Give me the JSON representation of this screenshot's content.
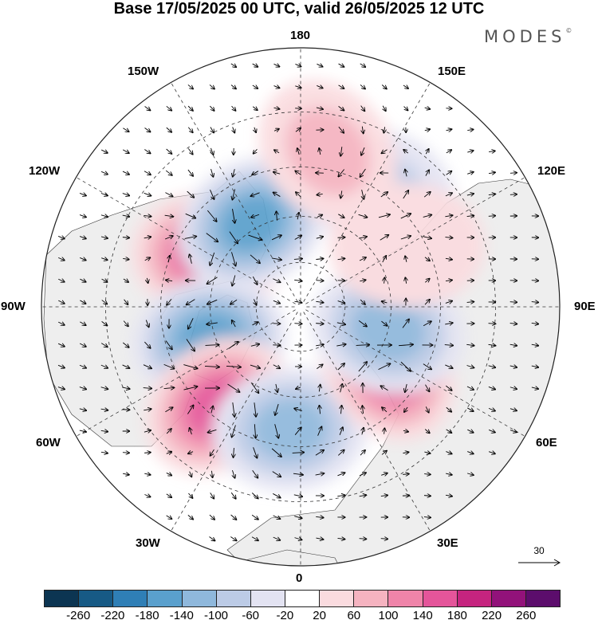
{
  "title": "Base 17/05/2025 00 UTC, valid 26/05/2025 12 UTC",
  "brand": "MODES",
  "brand_mark": "©",
  "longitude_labels": {
    "top": "180",
    "bottom": "0",
    "left": "90W",
    "right": "90E",
    "upper_left_1": "150W",
    "upper_left_2": "120W",
    "upper_right_1": "150E",
    "upper_right_2": "120E",
    "lower_left_1": "60W",
    "lower_left_2": "30W",
    "lower_right_1": "60E",
    "lower_right_2": "30E"
  },
  "reference_vector": {
    "label": "30"
  },
  "colorbar": {
    "colors": [
      "#0c3552",
      "#175a85",
      "#2f7fb6",
      "#5aa0cd",
      "#8fb8dc",
      "#bccbe6",
      "#e3e3f2",
      "#ffffff",
      "#fadbdf",
      "#f5b3c0",
      "#ef84a9",
      "#e4559a",
      "#c5247f",
      "#92127a",
      "#5c0d6c"
    ],
    "tick_labels": [
      "-260",
      "-220",
      "-180",
      "-140",
      "-100",
      "-60",
      "-20",
      "20",
      "60",
      "100",
      "140",
      "180",
      "220",
      "260"
    ]
  },
  "map": {
    "projection": "north polar stereographic",
    "land_color": "#eeeeee",
    "anomalies": [
      {
        "lon": -120,
        "lat": 55,
        "value": 170
      },
      {
        "lon": -150,
        "lat": 58,
        "value": -160
      },
      {
        "lon": -70,
        "lat": 58,
        "value": -150
      },
      {
        "lon": -40,
        "lat": 48,
        "value": 165
      },
      {
        "lon": -5,
        "lat": 50,
        "value": -120
      },
      {
        "lon": 55,
        "lat": 55,
        "value": 150
      },
      {
        "lon": 75,
        "lat": 60,
        "value": -120
      },
      {
        "lon": 145,
        "lat": 45,
        "value": -90
      },
      {
        "lon": 170,
        "lat": 40,
        "value": 60
      },
      {
        "lon": 120,
        "lat": 50,
        "value": 50
      }
    ]
  }
}
